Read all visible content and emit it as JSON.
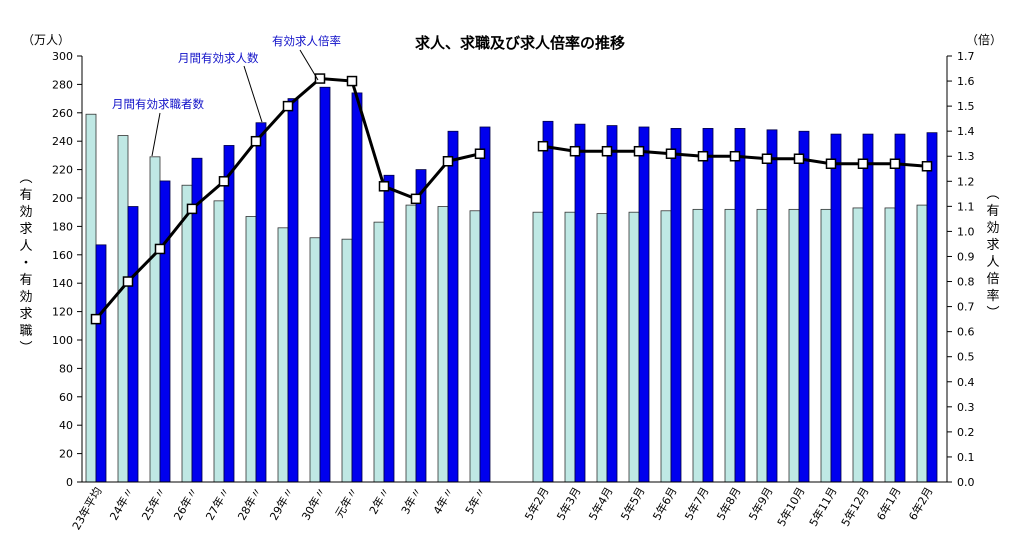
{
  "chart_data": {
    "type": "bar",
    "title": "求人、求職及び求人倍率の推移",
    "left_unit": "（万人）",
    "right_unit": "（倍）",
    "ylabel": "（有効求人・有効求職）",
    "y2label": "（有効求人倍率）",
    "ylim": [
      0,
      300
    ],
    "y2lim": [
      0,
      1.7
    ],
    "yticks": [
      "0",
      "20",
      "40",
      "60",
      "80",
      "100",
      "120",
      "140",
      "160",
      "180",
      "200",
      "220",
      "240",
      "260",
      "280",
      "300"
    ],
    "y2ticks": [
      "0.0",
      "0.1",
      "0.2",
      "0.3",
      "0.4",
      "0.5",
      "0.6",
      "0.7",
      "0.8",
      "0.9",
      "1.0",
      "1.1",
      "1.2",
      "1.3",
      "1.4",
      "1.5",
      "1.6",
      "1.7"
    ],
    "categories": [
      "23年平均",
      "24年〃",
      "25年〃",
      "26年〃",
      "27年〃",
      "28年〃",
      "29年〃",
      "30年〃",
      "元年〃",
      "2年〃",
      "3年〃",
      "4年〃",
      "5年〃",
      "5年2月",
      "5年3月",
      "5年4月",
      "5年5月",
      "5年6月",
      "5年7月",
      "5年8月",
      "5年9月",
      "5年10月",
      "5年11月",
      "5年12月",
      "6年1月",
      "6年2月"
    ],
    "series": [
      {
        "name": "月間有効求職者数",
        "axis": "left",
        "color": "#bfe8e4",
        "values": [
          259,
          244,
          229,
          209,
          198,
          187,
          179,
          172,
          171,
          183,
          195,
          194,
          191,
          190,
          190,
          189,
          190,
          191,
          192,
          192,
          192,
          192,
          192,
          193,
          193,
          195
        ]
      },
      {
        "name": "月間有効求人数",
        "axis": "left",
        "color": "#0000ee",
        "values": [
          167,
          194,
          212,
          228,
          237,
          253,
          270,
          278,
          274,
          216,
          220,
          247,
          250,
          254,
          252,
          251,
          250,
          249,
          249,
          249,
          248,
          247,
          245,
          245,
          245,
          246
        ]
      },
      {
        "name": "有効求人倍率",
        "axis": "right",
        "type": "line",
        "color": "#000000",
        "values": [
          0.65,
          0.8,
          0.93,
          1.09,
          1.2,
          1.36,
          1.5,
          1.61,
          1.6,
          1.18,
          1.13,
          1.28,
          1.31,
          1.34,
          1.32,
          1.32,
          1.32,
          1.31,
          1.3,
          1.3,
          1.29,
          1.29,
          1.27,
          1.27,
          1.27,
          1.26
        ]
      }
    ],
    "legend": "callouts"
  }
}
